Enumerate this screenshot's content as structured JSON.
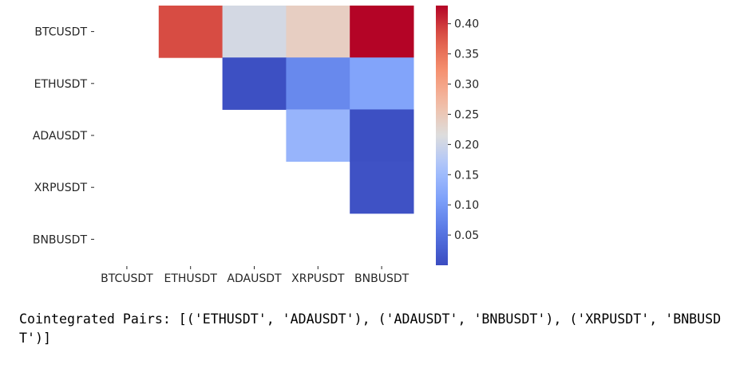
{
  "chart_data": {
    "type": "heatmap",
    "title": "",
    "xlabel": "",
    "ylabel": "",
    "x_labels": [
      "BTCUSDT",
      "ETHUSDT",
      "ADAUSDT",
      "XRPUSDT",
      "BNBUSDT"
    ],
    "y_labels": [
      "BTCUSDT",
      "ETHUSDT",
      "ADAUSDT",
      "XRPUSDT",
      "BNBUSDT"
    ],
    "colormap": "coolwarm",
    "vmin": 0.0,
    "vmax": 0.43,
    "values": [
      [
        null,
        0.385,
        0.205,
        0.24,
        0.43
      ],
      [
        null,
        null,
        0.005,
        0.08,
        0.115
      ],
      [
        null,
        null,
        null,
        0.14,
        0.005
      ],
      [
        null,
        null,
        null,
        null,
        0.008
      ],
      [
        null,
        null,
        null,
        null,
        null
      ]
    ],
    "mask": "lower triangle incl. diagonal",
    "colorbar": {
      "ticks": [
        0.05,
        0.1,
        0.15,
        0.2,
        0.25,
        0.3,
        0.35,
        0.4
      ],
      "tick_labels": [
        "0.05",
        "0.10",
        "0.15",
        "0.20",
        "0.25",
        "0.30",
        "0.35",
        "0.40"
      ]
    }
  },
  "output": {
    "text": "Cointegrated Pairs: [('ETHUSDT', 'ADAUSDT'), ('ADAUSDT', 'BNBUSDT'), ('XRPUSDT', 'BNBUSDT')]"
  }
}
